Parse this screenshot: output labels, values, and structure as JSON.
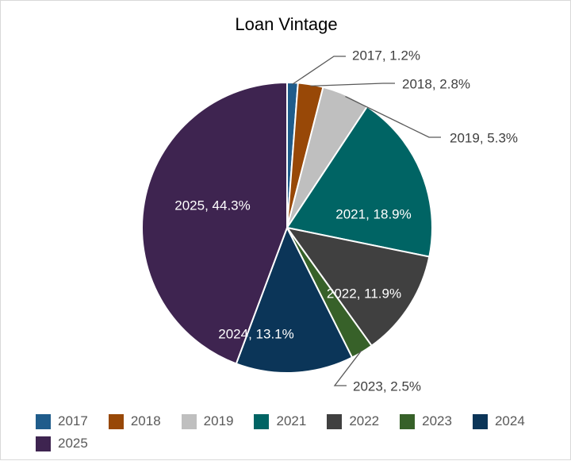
{
  "chart_data": {
    "type": "pie",
    "title": "Loan Vintage",
    "categories": [
      "2017",
      "2018",
      "2019",
      "2021",
      "2022",
      "2023",
      "2024",
      "2025"
    ],
    "values": [
      1.2,
      2.8,
      5.3,
      18.9,
      11.9,
      2.5,
      13.1,
      44.3
    ],
    "data_labels": [
      "2017, 1.2%",
      "2018, 2.8%",
      "2019, 5.3%",
      "2021, 18.9%",
      "2022, 11.9%",
      "2023, 2.5%",
      "2024, 13.1%",
      "2025, 44.3%"
    ],
    "colors": [
      "#1f5c8b",
      "#984807",
      "#bfbfbf",
      "#006464",
      "#404040",
      "#376129",
      "#0b3558",
      "#3e2450"
    ],
    "legend_position": "bottom"
  }
}
